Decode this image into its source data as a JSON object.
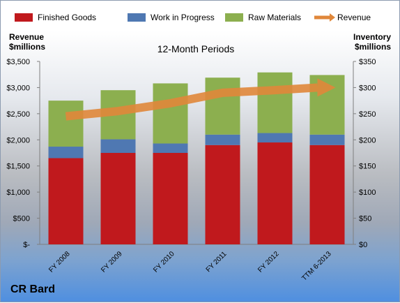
{
  "chart_data": {
    "type": "bar",
    "subtitle": "12-Month Periods",
    "company": "CR Bard",
    "categories": [
      "FY 2008",
      "FY 2009",
      "FY 2010",
      "FY 2011",
      "FY 2012",
      "TTM 6-2013"
    ],
    "series": [
      {
        "name": "Finished Goods",
        "axis": "right",
        "color": "#c0191d",
        "values": [
          165,
          175,
          175,
          190,
          195,
          190
        ]
      },
      {
        "name": "Work in Progress",
        "axis": "right",
        "color": "#4f78b2",
        "values": [
          22,
          26,
          18,
          20,
          18,
          20
        ]
      },
      {
        "name": "Raw Materials",
        "axis": "right",
        "color": "#8caf4f",
        "values": [
          88,
          94,
          115,
          109,
          116,
          114
        ]
      },
      {
        "name": "Revenue",
        "axis": "left",
        "type": "line",
        "color": "#e0873a",
        "values": [
          2450,
          2550,
          2700,
          2900,
          2950,
          3000
        ]
      }
    ],
    "left_axis": {
      "label_line1": "Revenue",
      "label_line2": "$millions",
      "ylim": [
        0,
        3500
      ],
      "ticks": [
        "$-",
        "$500",
        "$1,000",
        "$1,500",
        "$2,000",
        "$2,500",
        "$3,000",
        "$3,500"
      ]
    },
    "right_axis": {
      "label_line1": "Inventory",
      "label_line2": "$millions",
      "ylim": [
        0,
        350
      ],
      "ticks": [
        "$0",
        "$50",
        "$100",
        "$150",
        "$200",
        "$250",
        "$300",
        "$350"
      ]
    },
    "legend_position": "top",
    "grid": false
  }
}
